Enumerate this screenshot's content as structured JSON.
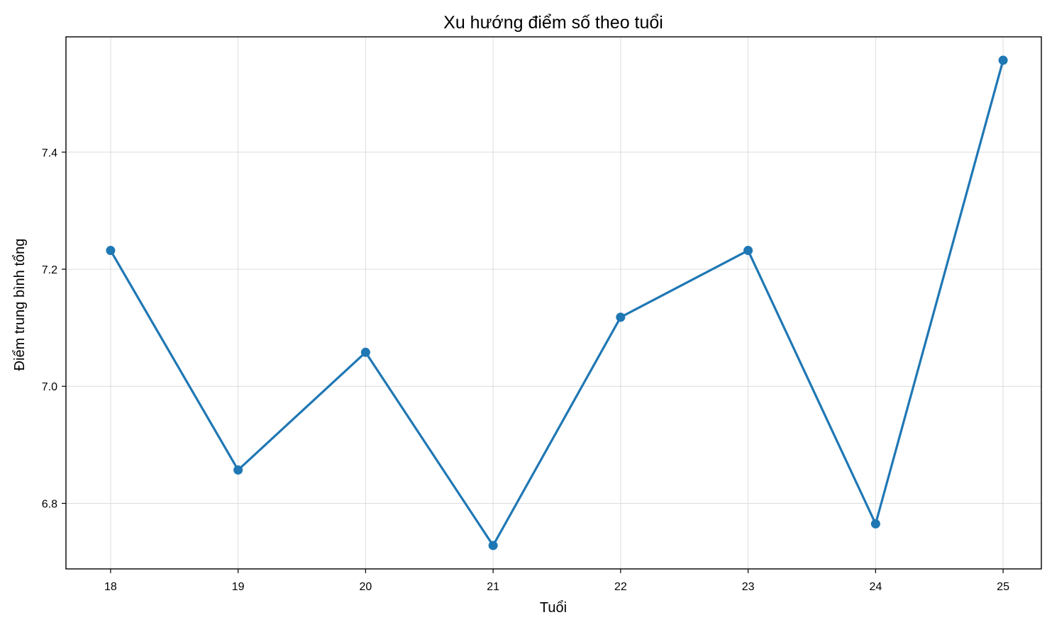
{
  "chart_data": {
    "type": "line",
    "title": "Xu hướng điểm số theo tuổi",
    "xlabel": "Tuổi",
    "ylabel": "Điểm trung bình tổng",
    "x": [
      18,
      19,
      20,
      21,
      22,
      23,
      24,
      25
    ],
    "series": [
      {
        "values": [
          7.232,
          6.857,
          7.058,
          6.728,
          7.118,
          7.232,
          6.765,
          7.557
        ],
        "color": "#1f77b4",
        "marker": "circle"
      }
    ],
    "xticks": [
      "18",
      "19",
      "20",
      "21",
      "22",
      "23",
      "24",
      "25"
    ],
    "yticks": [
      "6.8",
      "7.0",
      "7.2",
      "7.4"
    ],
    "xlim": [
      17.65,
      25.3
    ],
    "ylim": [
      6.688,
      7.597
    ],
    "grid": true
  }
}
